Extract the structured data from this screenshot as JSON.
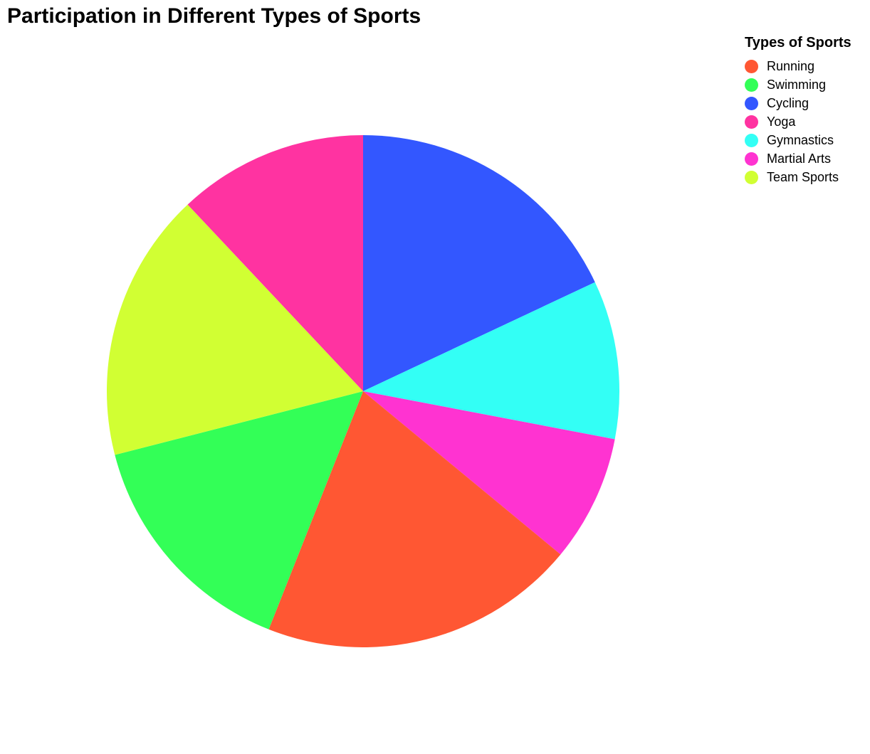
{
  "chart_data": {
    "type": "pie",
    "title": "Participation in Different Types of Sports",
    "legend_title": "Types of Sports",
    "legend_position": "top-right",
    "categories": [
      "Running",
      "Swimming",
      "Cycling",
      "Yoga",
      "Gymnastics",
      "Martial Arts",
      "Team Sports"
    ],
    "values": [
      20,
      15,
      18,
      12,
      10,
      8,
      17
    ],
    "colors": [
      "#FF5733",
      "#33FF57",
      "#3357FF",
      "#FF33A1",
      "#33FFF5",
      "#FF33D1",
      "#D1FF33"
    ],
    "slice_order": [
      "Cycling",
      "Gymnastics",
      "Martial Arts",
      "Running",
      "Swimming",
      "Team Sports",
      "Yoga"
    ]
  }
}
